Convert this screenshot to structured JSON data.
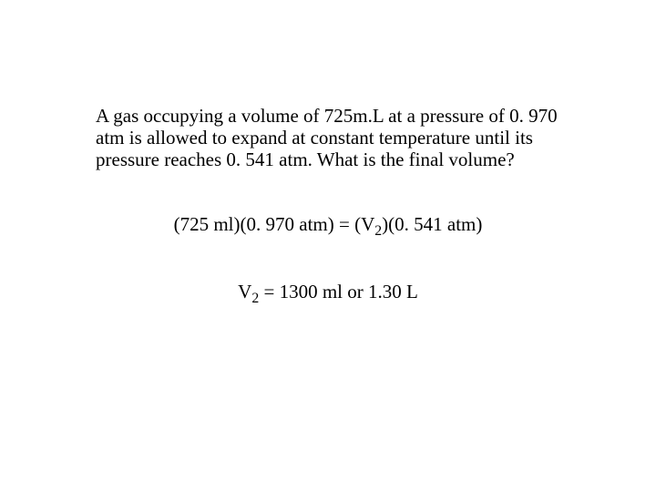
{
  "problem": {
    "text": "A gas occupying a volume of 725m.L at a pressure of 0. 970 atm is allowed to expand at constant temperature until its pressure reaches 0. 541 atm.  What is the final volume?"
  },
  "equation": {
    "lhs_vol": "(725 ml)",
    "lhs_pres": "(0. 970 atm)",
    "eq": " = ",
    "rhs_v": "(V",
    "rhs_sub": "2",
    "rhs_close": ")",
    "rhs_pres": "(0. 541 atm)"
  },
  "answer": {
    "v": "V",
    "sub": "2",
    "eq": " =  ",
    "ml": "1300 ml",
    "or": "   or   ",
    "l": "1.30 L"
  },
  "style": {
    "font_family": "Times New Roman",
    "font_size_pt": 16,
    "text_color": "#000000",
    "background_color": "#ffffff"
  }
}
